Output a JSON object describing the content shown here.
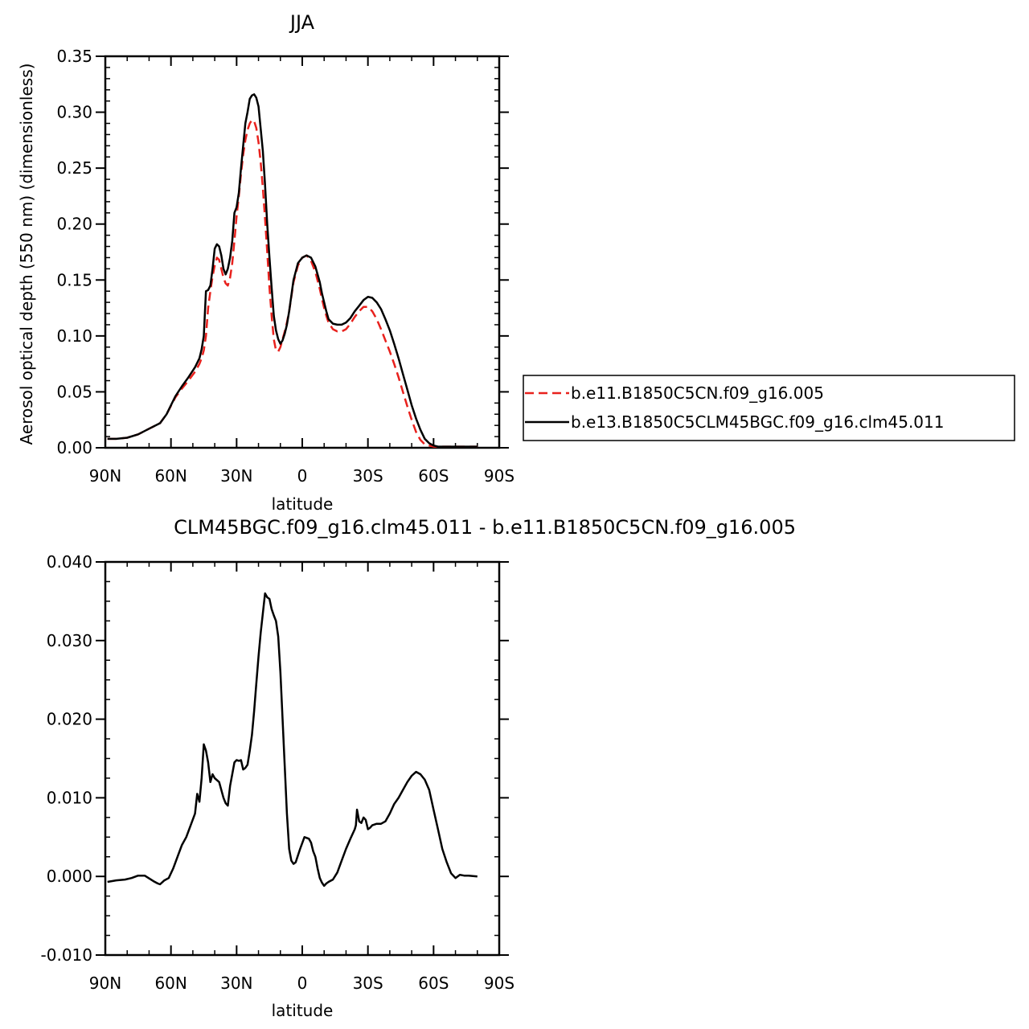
{
  "chart_data": [
    {
      "type": "line",
      "title": "JJA",
      "xlabel": "latitude",
      "ylabel": "Aerosol optical depth (550 nm) (dimensionless)",
      "xlim": [
        90,
        -90
      ],
      "ylim": [
        0,
        0.35
      ],
      "grid": false,
      "legend_position": "right",
      "x_ticks": [
        90,
        60,
        30,
        0,
        -30,
        -60,
        -90
      ],
      "x_tick_labels": [
        "90N",
        "60N",
        "30N",
        "0",
        "30S",
        "60S",
        "90S"
      ],
      "y_ticks": [
        0,
        0.05,
        0.1,
        0.15,
        0.2,
        0.25,
        0.3,
        0.35
      ],
      "y_tick_labels": [
        "0.00",
        "0.05",
        "0.10",
        "0.15",
        "0.20",
        "0.25",
        "0.30",
        "0.35"
      ],
      "series": [
        {
          "name": "b.e11.B1850C5CN.f09_g16.005",
          "color": "#e8211d",
          "dash": "dashed",
          "x": [
            89,
            85,
            80,
            75,
            70,
            65,
            62,
            58,
            55,
            52,
            49,
            47,
            46,
            45,
            44,
            43,
            42,
            41,
            40,
            39,
            38,
            37,
            36,
            35,
            34,
            33,
            32,
            31,
            30,
            29,
            28,
            27,
            26,
            25,
            24,
            23,
            22,
            21,
            20,
            19,
            18,
            17,
            16,
            15,
            14,
            13,
            12,
            11,
            10,
            9,
            8,
            7,
            6,
            5,
            4,
            2,
            0,
            -2,
            -4,
            -6,
            -8,
            -9,
            -10,
            -11,
            -12,
            -14,
            -16,
            -18,
            -20,
            -22,
            -24,
            -26,
            -28,
            -30,
            -32,
            -34,
            -36,
            -38,
            -40,
            -42,
            -44,
            -46,
            -48,
            -50,
            -52,
            -54,
            -56,
            -58,
            -60,
            -62,
            -64,
            -66,
            -68,
            -70,
            -72,
            -74,
            -76,
            -78,
            -80
          ],
          "y": [
            0.008,
            0.008,
            0.009,
            0.012,
            0.017,
            0.022,
            0.03,
            0.045,
            0.053,
            0.06,
            0.068,
            0.075,
            0.08,
            0.087,
            0.1,
            0.125,
            0.14,
            0.153,
            0.163,
            0.17,
            0.168,
            0.16,
            0.152,
            0.147,
            0.145,
            0.152,
            0.165,
            0.185,
            0.207,
            0.225,
            0.245,
            0.262,
            0.275,
            0.284,
            0.29,
            0.293,
            0.292,
            0.286,
            0.273,
            0.255,
            0.232,
            0.205,
            0.175,
            0.143,
            0.118,
            0.097,
            0.087,
            0.086,
            0.09,
            0.097,
            0.104,
            0.112,
            0.122,
            0.135,
            0.148,
            0.163,
            0.17,
            0.172,
            0.167,
            0.157,
            0.142,
            0.133,
            0.125,
            0.118,
            0.112,
            0.106,
            0.104,
            0.104,
            0.106,
            0.111,
            0.117,
            0.122,
            0.126,
            0.126,
            0.122,
            0.115,
            0.106,
            0.096,
            0.086,
            0.075,
            0.063,
            0.05,
            0.037,
            0.025,
            0.014,
            0.007,
            0.003,
            0.002,
            0.001,
            0.001,
            0.001,
            0.001,
            0.001,
            0.001,
            0.001,
            0.001,
            0.001,
            0.001,
            0.001
          ]
        },
        {
          "name": "b.e13.B1850C5CLM45BGC.f09_g16.clm45.011",
          "color": "#000000",
          "dash": "solid",
          "x": [
            89,
            85,
            80,
            75,
            70,
            65,
            62,
            58,
            55,
            52,
            49,
            47,
            46,
            45,
            44,
            43,
            42,
            41,
            40,
            39,
            38,
            37,
            36,
            35,
            34,
            33,
            32,
            31,
            30,
            29,
            28,
            27,
            26,
            25,
            24,
            23,
            22,
            21,
            20,
            19,
            18,
            17,
            16,
            15,
            14,
            13,
            12,
            11,
            10,
            9,
            8,
            7,
            6,
            5,
            4,
            2,
            0,
            -2,
            -4,
            -6,
            -8,
            -9,
            -10,
            -11,
            -12,
            -14,
            -16,
            -18,
            -20,
            -22,
            -24,
            -26,
            -28,
            -30,
            -32,
            -34,
            -36,
            -38,
            -40,
            -42,
            -44,
            -46,
            -48,
            -50,
            -52,
            -54,
            -56,
            -58,
            -60,
            -62,
            -64,
            -66,
            -68,
            -70,
            -72,
            -74,
            -76,
            -78,
            -80
          ],
          "y": [
            0.008,
            0.008,
            0.009,
            0.012,
            0.017,
            0.022,
            0.03,
            0.046,
            0.055,
            0.063,
            0.072,
            0.08,
            0.088,
            0.1,
            0.14,
            0.141,
            0.145,
            0.16,
            0.178,
            0.182,
            0.18,
            0.172,
            0.16,
            0.155,
            0.16,
            0.17,
            0.185,
            0.21,
            0.215,
            0.228,
            0.25,
            0.27,
            0.29,
            0.3,
            0.312,
            0.315,
            0.316,
            0.313,
            0.305,
            0.285,
            0.265,
            0.235,
            0.2,
            0.17,
            0.143,
            0.118,
            0.105,
            0.097,
            0.093,
            0.096,
            0.102,
            0.11,
            0.122,
            0.136,
            0.15,
            0.165,
            0.17,
            0.172,
            0.17,
            0.162,
            0.148,
            0.138,
            0.13,
            0.122,
            0.115,
            0.111,
            0.11,
            0.11,
            0.112,
            0.116,
            0.122,
            0.127,
            0.132,
            0.135,
            0.134,
            0.13,
            0.124,
            0.115,
            0.105,
            0.093,
            0.08,
            0.066,
            0.052,
            0.038,
            0.026,
            0.016,
            0.008,
            0.004,
            0.002,
            0.001,
            0.001,
            0.001,
            0.001,
            0.001,
            0.001,
            0.001,
            0.001,
            0.001,
            0.001
          ]
        }
      ],
      "legend": [
        "b.e11.B1850C5CN.f09_g16.005",
        "b.e13.B1850C5CLM45BGC.f09_g16.clm45.011"
      ]
    },
    {
      "type": "line",
      "title": "CLM45BGC.f09_g16.clm45.011 - b.e11.B1850C5CN.f09_g16.005",
      "xlabel": "latitude",
      "ylabel": "",
      "xlim": [
        90,
        -90
      ],
      "ylim": [
        -0.01,
        0.04
      ],
      "grid": false,
      "x_ticks": [
        90,
        60,
        30,
        0,
        -30,
        -60,
        -90
      ],
      "x_tick_labels": [
        "90N",
        "60N",
        "30N",
        "0",
        "30S",
        "60S",
        "90S"
      ],
      "y_ticks": [
        -0.01,
        0,
        0.01,
        0.02,
        0.03,
        0.04
      ],
      "y_tick_labels": [
        "-0.010",
        "0.000",
        "0.010",
        "0.020",
        "0.030",
        "0.040"
      ],
      "series": [
        {
          "color": "#000000",
          "dash": "solid",
          "x": [
            89,
            85,
            81,
            78,
            75,
            72,
            68,
            66,
            65,
            63,
            61,
            59,
            57,
            55,
            53,
            51,
            49,
            48,
            47,
            46,
            45,
            44,
            43,
            42,
            41,
            40,
            38,
            36,
            35,
            34,
            33,
            32,
            31,
            30,
            29,
            28,
            27,
            26,
            25,
            24,
            23,
            22,
            21,
            20,
            19,
            18,
            17,
            16,
            15,
            14,
            13,
            12,
            11,
            10,
            9,
            8,
            7,
            6,
            5,
            4,
            3,
            1,
            -1,
            -3,
            -4,
            -5,
            -6,
            -7,
            -8,
            -9,
            -10,
            -11,
            -12,
            -14,
            -16,
            -18,
            -20,
            -22,
            -24,
            -24.5,
            -25,
            -26,
            -27,
            -28,
            -29,
            -30,
            -31,
            -32,
            -34,
            -36,
            -38,
            -40,
            -42,
            -44,
            -46,
            -48,
            -50,
            -52,
            -54,
            -56,
            -58,
            -60,
            -62,
            -64,
            -66,
            -68,
            -70,
            -72,
            -74,
            -76,
            -80
          ],
          "y": [
            -0.0007,
            -0.0005,
            -0.0004,
            -0.0002,
            0.0001,
            0.0001,
            -0.0006,
            -0.0009,
            -0.001,
            -0.0005,
            -0.0002,
            0.001,
            0.0025,
            0.004,
            0.005,
            0.0065,
            0.008,
            0.0105,
            0.0095,
            0.0125,
            0.0168,
            0.016,
            0.0145,
            0.012,
            0.013,
            0.0125,
            0.012,
            0.01,
            0.0093,
            0.009,
            0.0115,
            0.013,
            0.0145,
            0.0148,
            0.0147,
            0.0148,
            0.0136,
            0.0138,
            0.0142,
            0.016,
            0.018,
            0.021,
            0.0245,
            0.028,
            0.031,
            0.0335,
            0.036,
            0.0355,
            0.0353,
            0.034,
            0.0332,
            0.0325,
            0.0305,
            0.026,
            0.02,
            0.014,
            0.008,
            0.0035,
            0.002,
            0.0016,
            0.0018,
            0.0035,
            0.005,
            0.0048,
            0.0043,
            0.0032,
            0.0025,
            0.001,
            -0.0002,
            -0.0008,
            -0.0012,
            -0.0009,
            -0.0007,
            -0.0004,
            0.0005,
            0.002,
            0.0035,
            0.0048,
            0.006,
            0.0065,
            0.0085,
            0.007,
            0.0068,
            0.0075,
            0.0072,
            0.006,
            0.0062,
            0.0065,
            0.0067,
            0.0067,
            0.007,
            0.008,
            0.0092,
            0.01,
            0.011,
            0.012,
            0.0128,
            0.0133,
            0.013,
            0.0123,
            0.011,
            0.0085,
            0.006,
            0.0035,
            0.0018,
            0.0004,
            -0.0002,
            0.0002,
            0.0001,
            0.0001,
            0.0
          ]
        }
      ]
    }
  ]
}
